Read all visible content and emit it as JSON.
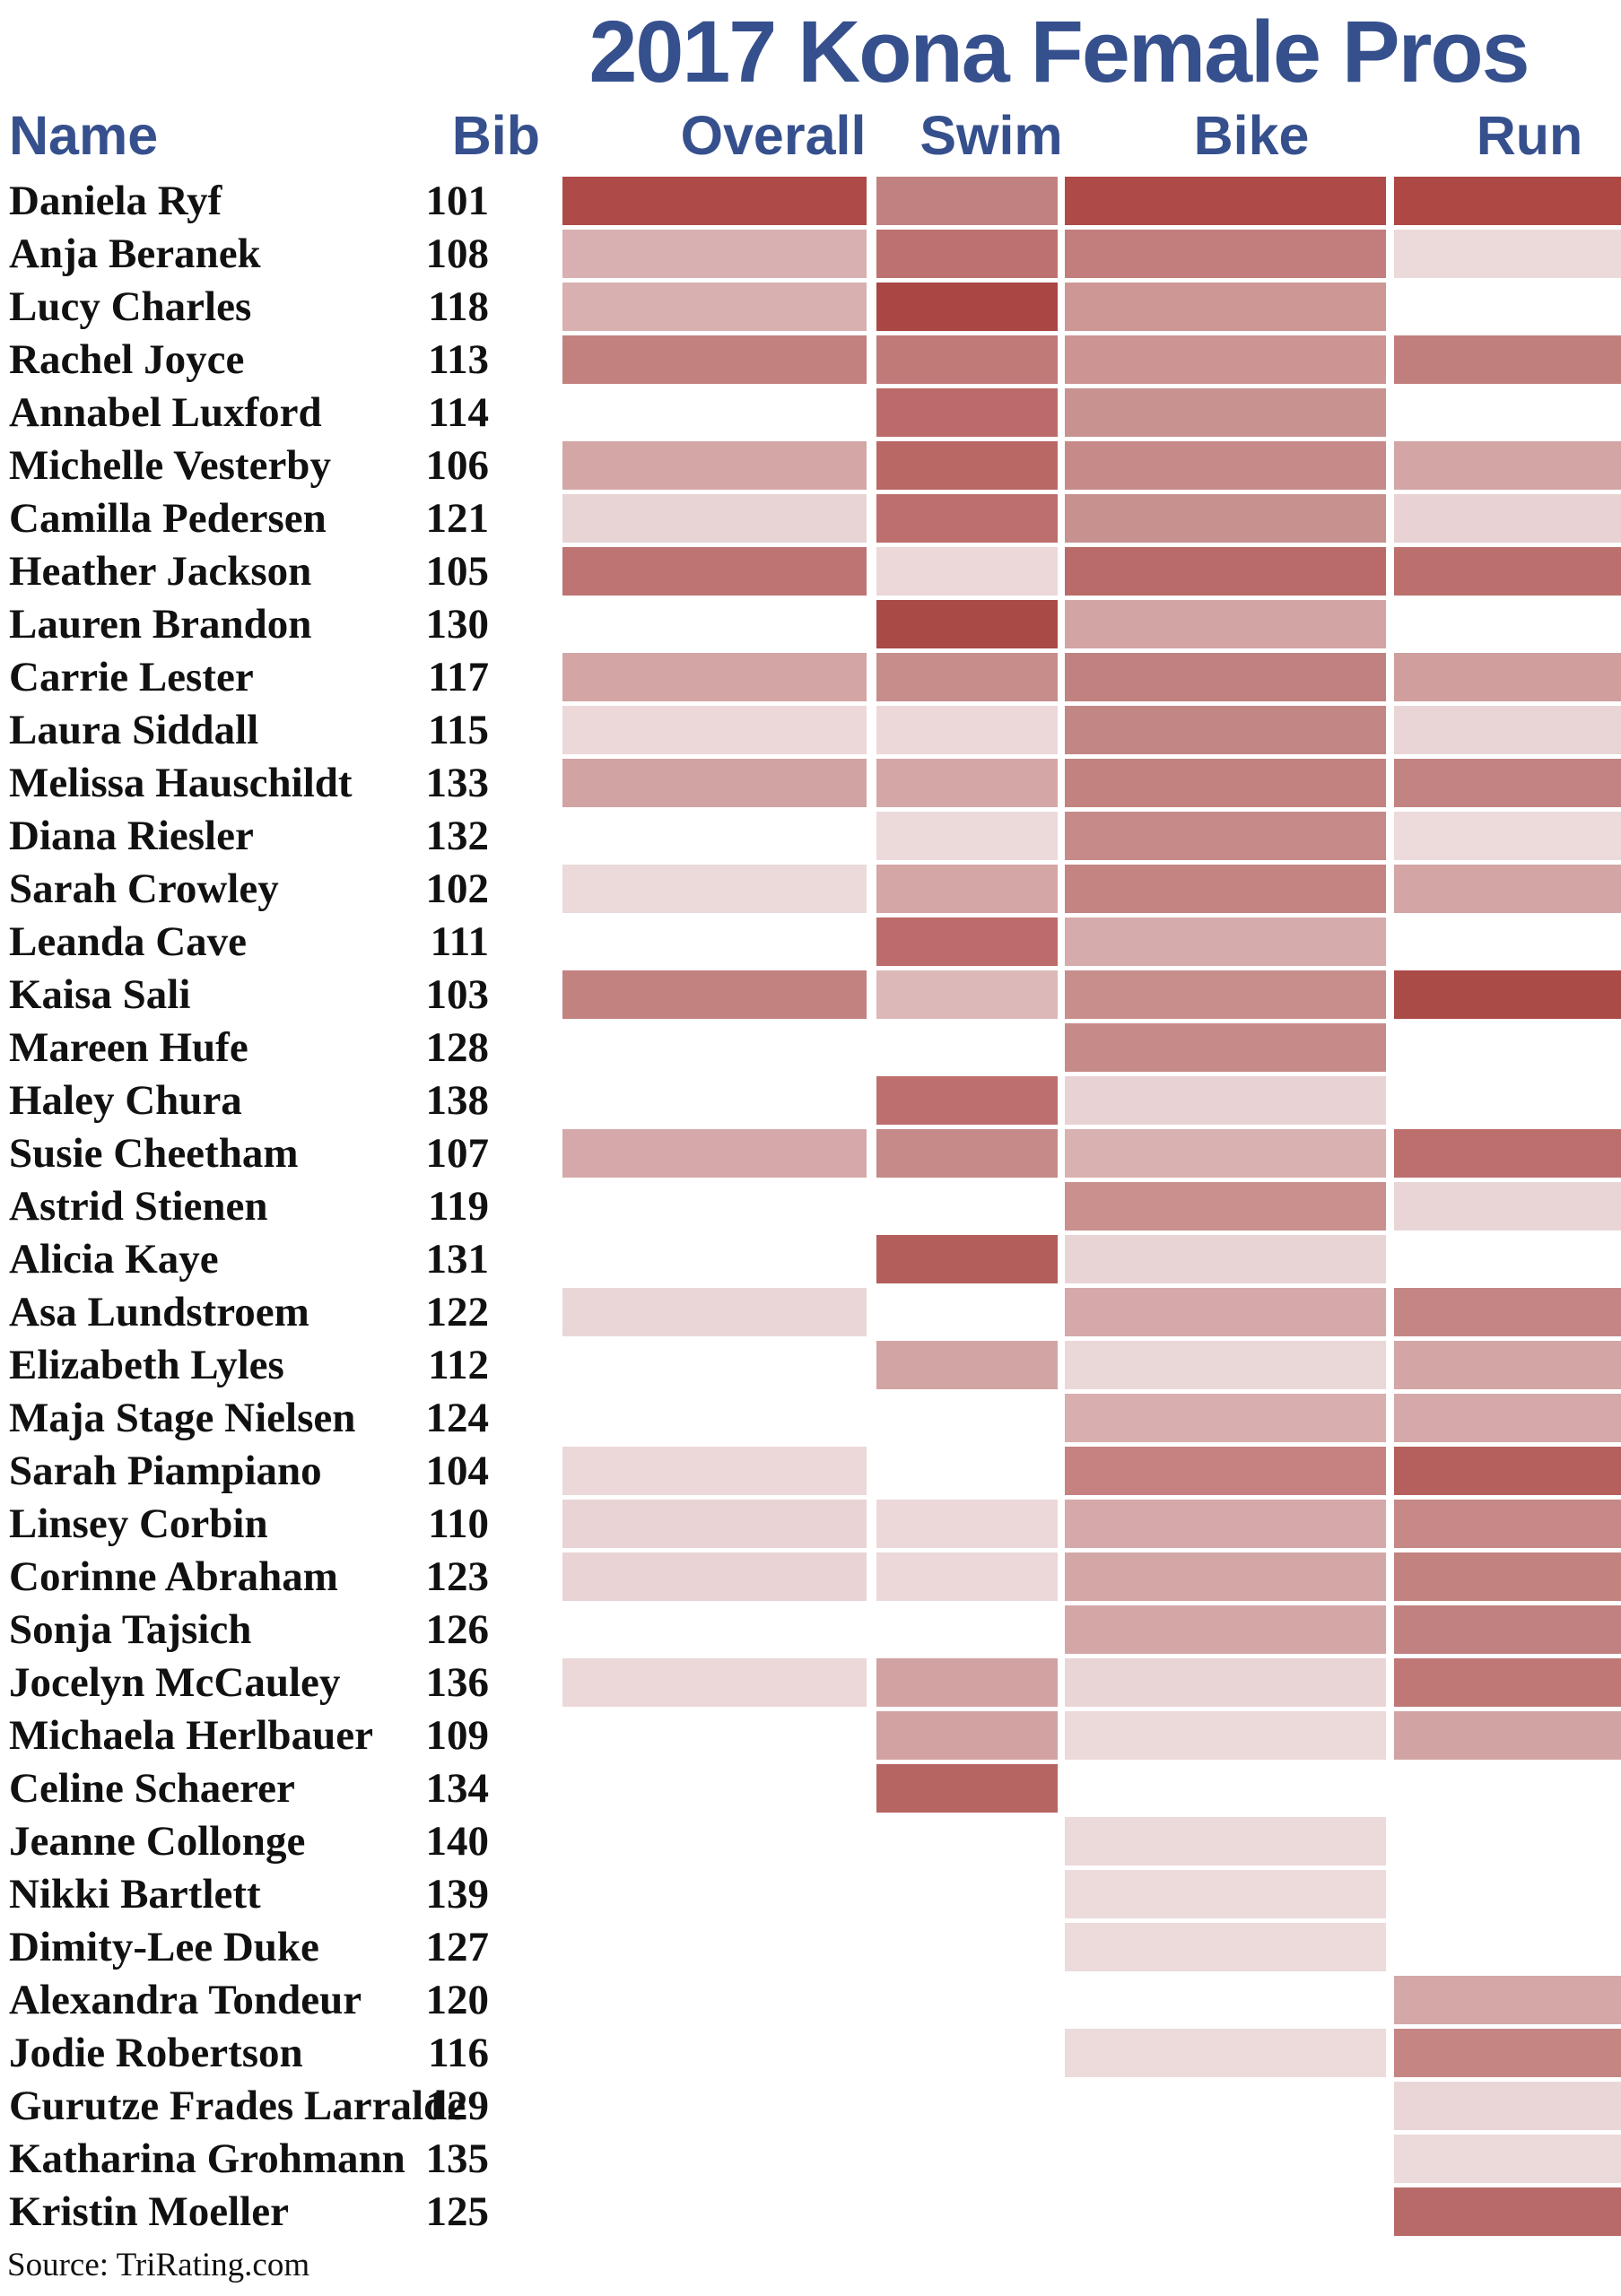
{
  "title": "2017 Kona Female Pros",
  "source": "Source: TriRating.com",
  "colors": {
    "heading": "#36508d",
    "body_text": "#111111",
    "scale_low": "#eedcdc",
    "scale_high": "#a94744"
  },
  "header": {
    "name": "Name",
    "bib": "Bib",
    "overall": "Overall",
    "swim": "Swim",
    "bike": "Bike",
    "run": "Run"
  },
  "chart_data": {
    "type": "heatmap",
    "title": "2017 Kona Female Pros",
    "columns": [
      "Overall",
      "Swim",
      "Bike",
      "Run"
    ],
    "color_scale": {
      "low": "#eedcdc",
      "high": "#a94744",
      "description": "darker red = stronger rating; blank cell = no rating shown"
    },
    "rows": [
      {
        "name": "Daniela Ryf",
        "bib": "101",
        "overall": "#ae4a47",
        "swim": "#c08180",
        "bike": "#ae4a47",
        "run": "#ad4845"
      },
      {
        "name": "Anja Beranek",
        "bib": "108",
        "overall": "#d8b0b1",
        "swim": "#bd7270",
        "bike": "#c17e7c",
        "run": "#ecd9da"
      },
      {
        "name": "Lucy Charles",
        "bib": "118",
        "overall": "#d8b0b0",
        "swim": "#a94744",
        "bike": "#cc9795",
        "run": null
      },
      {
        "name": "Rachel Joyce",
        "bib": "113",
        "overall": "#c2807e",
        "swim": "#c07a78",
        "bike": "#cc9593",
        "run": "#c07f7d"
      },
      {
        "name": "Annabel Luxford",
        "bib": "114",
        "overall": null,
        "swim": "#bb6c6a",
        "bike": "#c89290",
        "run": null
      },
      {
        "name": "Michelle Vesterby",
        "bib": "106",
        "overall": "#d4a7a7",
        "swim": "#b96866",
        "bike": "#c68a89",
        "run": "#d3a5a5"
      },
      {
        "name": "Camilla Pedersen",
        "bib": "121",
        "overall": "#e9d4d5",
        "swim": "#bc6f6d",
        "bike": "#c79190",
        "run": "#e8d2d3"
      },
      {
        "name": "Heather Jackson",
        "bib": "105",
        "overall": "#bd7472",
        "swim": "#ecd8d9",
        "bike": "#b96b69",
        "run": "#bb706e"
      },
      {
        "name": "Lauren Brandon",
        "bib": "130",
        "overall": null,
        "swim": "#a94a46",
        "bike": "#d2a4a4",
        "run": null
      },
      {
        "name": "Carrie Lester",
        "bib": "117",
        "overall": "#d3a5a5",
        "swim": "#c68d8b",
        "bike": "#c08280",
        "run": "#cf9e9d"
      },
      {
        "name": "Laura Siddall",
        "bib": "115",
        "overall": "#ecd8d9",
        "swim": "#ecd8d9",
        "bike": "#c28684",
        "run": "#ead5d6"
      },
      {
        "name": "Melissa Hauschildt",
        "bib": "133",
        "overall": "#d2a3a3",
        "swim": "#d4a7a7",
        "bike": "#c28280",
        "run": "#c28482"
      },
      {
        "name": "Diana Riesler",
        "bib": "132",
        "overall": null,
        "swim": "#ecd9da",
        "bike": "#c68a88",
        "run": "#eddbdc"
      },
      {
        "name": "Sarah Crowley",
        "bib": "102",
        "overall": "#ecd9da",
        "swim": "#d4a6a6",
        "bike": "#c48482",
        "run": "#d3a5a5"
      },
      {
        "name": "Leanda Cave",
        "bib": "111",
        "overall": null,
        "swim": "#bc6c6a",
        "bike": "#d6abab",
        "run": null
      },
      {
        "name": "Kaisa Sali",
        "bib": "103",
        "overall": "#c28280",
        "swim": "#dcb8b8",
        "bike": "#c88e8c",
        "run": "#ab4b48"
      },
      {
        "name": "Mareen Hufe",
        "bib": "128",
        "overall": null,
        "swim": null,
        "bike": "#c68a88",
        "run": null
      },
      {
        "name": "Haley Chura",
        "bib": "138",
        "overall": null,
        "swim": "#bd6f6d",
        "bike": "#e8d2d3",
        "run": null
      },
      {
        "name": "Susie Cheetham",
        "bib": "107",
        "overall": "#d5a9a9",
        "swim": "#c68a88",
        "bike": "#d9b1b1",
        "run": "#bc6f6d"
      },
      {
        "name": "Astrid Stienen",
        "bib": "119",
        "overall": null,
        "swim": null,
        "bike": "#c9908e",
        "run": "#ead5d6"
      },
      {
        "name": "Alicia Kaye",
        "bib": "131",
        "overall": null,
        "swim": "#b35e5b",
        "bike": "#e9d4d5",
        "run": null
      },
      {
        "name": "Asa Lundstroem",
        "bib": "122",
        "overall": "#ebd6d7",
        "swim": null,
        "bike": "#d5a9a9",
        "run": "#c48685"
      },
      {
        "name": "Elizabeth Lyles",
        "bib": "112",
        "overall": null,
        "swim": "#d3a4a4",
        "bike": "#ead8d8",
        "run": "#d3a5a5"
      },
      {
        "name": "Maja Stage Nielsen",
        "bib": "124",
        "overall": null,
        "swim": null,
        "bike": "#d8aeae",
        "run": "#d5a9a9"
      },
      {
        "name": "Sarah Piampiano",
        "bib": "104",
        "overall": "#ecd8d9",
        "swim": null,
        "bike": "#c58281",
        "run": "#b5605d"
      },
      {
        "name": "Linsey Corbin",
        "bib": "110",
        "overall": "#e9d3d4",
        "swim": "#ecd8d9",
        "bike": "#d5a9a9",
        "run": "#c68987"
      },
      {
        "name": "Corinne Abraham",
        "bib": "123",
        "overall": "#e9d3d4",
        "swim": "#ecd8d9",
        "bike": "#d4a7a7",
        "run": "#c18280"
      },
      {
        "name": "Sonja Tajsich",
        "bib": "126",
        "overall": null,
        "swim": null,
        "bike": "#d4a7a7",
        "run": "#c18180"
      },
      {
        "name": "Jocelyn McCauley",
        "bib": "136",
        "overall": "#ecd8d9",
        "swim": "#d2a2a2",
        "bike": "#ead5d6",
        "run": "#bf7876"
      },
      {
        "name": "Michaela Herlbauer",
        "bib": "109",
        "overall": null,
        "swim": "#d2a2a2",
        "bike": "#ecd9da",
        "run": "#d2a3a3"
      },
      {
        "name": "Celine Schaerer",
        "bib": "134",
        "overall": null,
        "swim": "#b66563",
        "bike": null,
        "run": null
      },
      {
        "name": "Jeanne Collonge",
        "bib": "140",
        "overall": null,
        "swim": null,
        "bike": "#ecd9da",
        "run": null
      },
      {
        "name": "Nikki Bartlett",
        "bib": "139",
        "overall": null,
        "swim": null,
        "bike": "#eddadb",
        "run": null
      },
      {
        "name": "Dimity-Lee Duke",
        "bib": "127",
        "overall": null,
        "swim": null,
        "bike": "#eddadb",
        "run": null
      },
      {
        "name": "Alexandra Tondeur",
        "bib": "120",
        "overall": null,
        "swim": null,
        "bike": null,
        "run": "#d5a8a8"
      },
      {
        "name": "Jodie Robertson",
        "bib": "116",
        "overall": null,
        "swim": null,
        "bike": "#eddadb",
        "run": "#c58583"
      },
      {
        "name": "Gurutze Frades Larralde",
        "bib": "129",
        "overall": null,
        "swim": null,
        "bike": null,
        "run": "#ead6d7"
      },
      {
        "name": "Katharina Grohmann",
        "bib": "135",
        "overall": null,
        "swim": null,
        "bike": null,
        "run": "#ecd9da"
      },
      {
        "name": "Kristin Moeller",
        "bib": "125",
        "overall": null,
        "swim": null,
        "bike": null,
        "run": "#b76a68"
      }
    ]
  }
}
